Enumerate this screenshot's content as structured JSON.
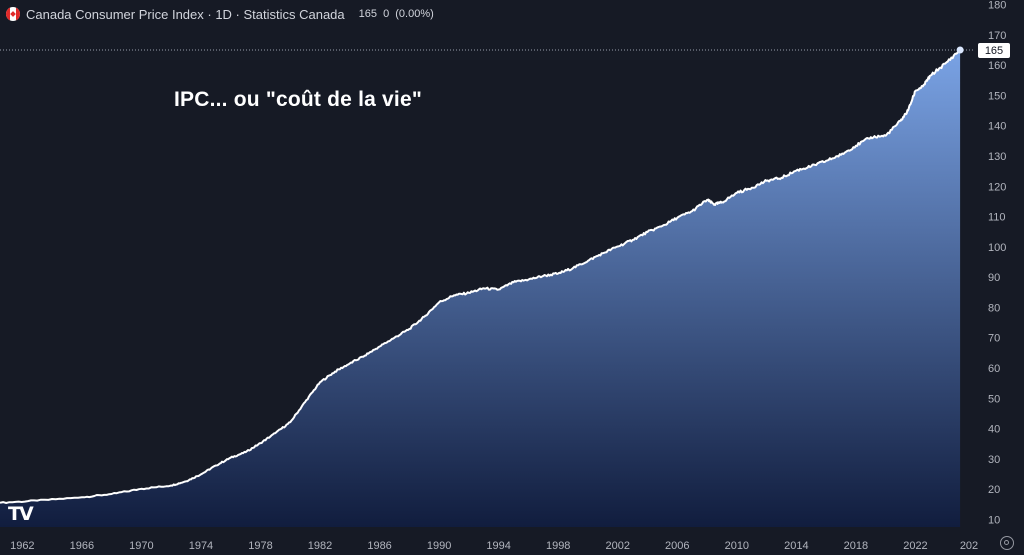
{
  "header": {
    "title": "Canada Consumer Price Index · 1D · Statistics Canada",
    "last_value": "165",
    "change": "0",
    "change_pct": "(0.00%)"
  },
  "annotation": "IPC... ou \"coût de la vie\"",
  "logo": "TV",
  "colors": {
    "background": "#161a25",
    "line": "#ffffff",
    "area_top": "#7aa3e5",
    "area_bottom": "#111d3e",
    "axis_text": "#b2b5be",
    "marker": "#dbe8ff"
  },
  "icons": {
    "flag": "canada-flag-icon",
    "settings": "settings-icon"
  },
  "chart_data": {
    "type": "area",
    "x_label": "",
    "y_label": "",
    "xlim": [
      1960.5,
      2026.0
    ],
    "ylim": [
      7.5,
      181.5
    ],
    "y_ticks": [
      10,
      20,
      30,
      40,
      50,
      60,
      70,
      80,
      90,
      100,
      110,
      120,
      130,
      140,
      150,
      160,
      170,
      180
    ],
    "x_ticks": [
      "1962",
      "1966",
      "1970",
      "1974",
      "1978",
      "1982",
      "1986",
      "1990",
      "1994",
      "1998",
      "2002",
      "2006",
      "2010",
      "2014",
      "2018",
      "2022",
      "202"
    ],
    "last_price_label": "165",
    "grid": false,
    "x": [
      1960.5,
      1963,
      1966,
      1968,
      1970,
      1972,
      1973,
      1974,
      1975,
      1976,
      1977,
      1978,
      1979,
      1980,
      1981,
      1982,
      1983,
      1984,
      1985,
      1986,
      1987,
      1988,
      1989,
      1990,
      1991,
      1992,
      1993,
      1994,
      1995,
      1996,
      1997,
      1998,
      1999,
      2000,
      2001,
      2002,
      2003,
      2004,
      2005,
      2006,
      2007,
      2008,
      2008.5,
      2009,
      2010,
      2011,
      2012,
      2013,
      2014,
      2015,
      2016,
      2017,
      2018,
      2019,
      2020,
      2021,
      2021.5,
      2022,
      2022.5,
      2023,
      2024,
      2025
    ],
    "y": [
      15.5,
      16.2,
      17.3,
      18.4,
      20.1,
      21.2,
      22.6,
      24.9,
      27.8,
      30.4,
      32.2,
      35.2,
      38.5,
      42.1,
      48.8,
      55.3,
      58.8,
      61.5,
      64.1,
      67.1,
      70.0,
      72.9,
      76.9,
      81.7,
      84.0,
      84.8,
      86.3,
      85.9,
      88.3,
      89.2,
      90.4,
      91.2,
      93.0,
      95.4,
      97.9,
      100.1,
      102.3,
      104.9,
      106.9,
      109.6,
      111.8,
      115.5,
      114.0,
      114.7,
      117.8,
      119.5,
      121.8,
      122.8,
      125.2,
      126.6,
      128.4,
      130.4,
      133.4,
      136.2,
      136.7,
      141.6,
      145.0,
      151.5,
      153.0,
      156.5,
      160.5,
      165.0
    ]
  }
}
